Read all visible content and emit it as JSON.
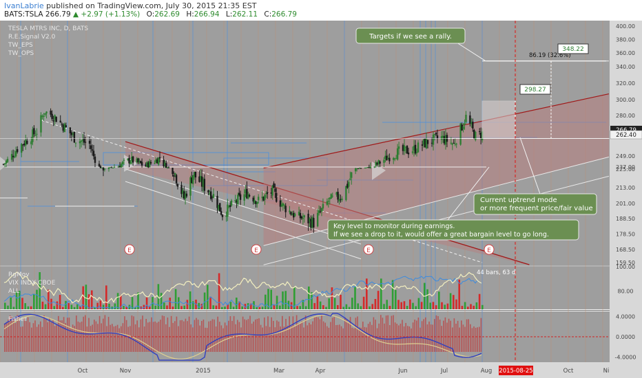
{
  "header": {
    "author": "IvanLabrie",
    "published_text": "published on TradingView.com, July 30, 2015 21:35 EST",
    "symbol": "BATS:TSLA",
    "last": "266.79",
    "change": "+2.97 (+1.13%)",
    "open_label": "O:",
    "open": "262.69",
    "high_label": "H:",
    "high": "266.94",
    "low_label": "L:",
    "low": "262.11",
    "close_label": "C:",
    "close": "266.79"
  },
  "legend": {
    "title": "TESLA MTRS INC, D, BATS",
    "items": [
      "R.E.Signal V2.0",
      "TW_EPS",
      "TW_OPS"
    ]
  },
  "colors": {
    "background": "#9e9e9e",
    "up_candle": "#2e7d32",
    "down_candle": "#1a1a1a",
    "resistance_line": "#a01818",
    "channel_fill": "#b87c7c",
    "support_line": "#e8e8e8",
    "blue_line": "#4a8fe0",
    "annotation_box": "#6b8f52",
    "volume_up": "#2f9e35",
    "volume_down": "#d42a2a",
    "fisher_bar": "#b84a4a",
    "fisher_fast": "#3040c0",
    "fisher_slow": "#e0d090",
    "date_marker": "#e01010"
  },
  "annotations": {
    "targets": "Targets if we see a rally.",
    "uptrend": [
      "Current uptrend mode",
      "or more frequent price/fair value"
    ],
    "keylevel": [
      "Key level to monitor during earnings.",
      "If we see a drop to it, would offer a great bargain level to go long."
    ],
    "measure": "86.19 (32.6%)",
    "target_high": "348.22",
    "target_mid": "298.27",
    "price_tag_current": "266.79",
    "price_tag_level": "262.40",
    "earnings_marker": "E",
    "bars_info": "44 bars, 63 d",
    "date_marker": "2015-08-25"
  },
  "indicators": {
    "rgmov_label": "RgMov",
    "vix_label": "VIX INDX CBOE",
    "vol_label": "ALL",
    "fisher_label": "Fisher",
    "rgmov_ticks": [
      {
        "v": 100,
        "label": "100.00"
      },
      {
        "v": 80,
        "label": "80.00"
      }
    ],
    "fisher_ticks": [
      {
        "v": 4,
        "label": "4.0000"
      },
      {
        "v": 0,
        "label": "0.0000"
      },
      {
        "v": -4,
        "label": "-4.0000"
      }
    ]
  },
  "chart_data": {
    "type": "candlestick",
    "title": "TESLA MTRS INC, D, BATS",
    "y_axis": {
      "min": 152,
      "max": 402,
      "ticks": [
        400,
        380,
        360,
        340,
        320,
        300,
        280,
        266.79,
        262.4,
        249,
        237,
        225,
        213,
        201,
        188.5,
        178.5,
        168.5,
        159.5
      ]
    },
    "y_tick_labels": [
      "400.00",
      "380.00",
      "360.00",
      "340.00",
      "320.00",
      "300.00",
      "280.00",
      "266.79",
      "262.40",
      "249.00",
      "237.00",
      "225.00",
      "213.00",
      "201.00",
      "188.50",
      "178.50",
      "168.50",
      "159.50"
    ],
    "x_axis": {
      "start": "2014-08-05",
      "end": "2015-11-30",
      "labels": [
        "Oct",
        "Nov",
        "2015",
        "Mar",
        "Apr",
        "Jun",
        "Jul",
        "Aug",
        "Oct",
        "Ni"
      ],
      "label_dates": [
        "2014-10-01",
        "2014-11-01",
        "2015-01-01",
        "2015-03-01",
        "2015-04-01",
        "2015-06-01",
        "2015-07-01",
        "2015-08-01",
        "2015-10-01",
        "2015-11-26"
      ]
    },
    "price_path": [
      {
        "date": "2014-08-05",
        "close": 240
      },
      {
        "date": "2014-08-15",
        "close": 255
      },
      {
        "date": "2014-08-29",
        "close": 268
      },
      {
        "date": "2014-09-04",
        "close": 285
      },
      {
        "date": "2014-09-12",
        "close": 278
      },
      {
        "date": "2014-09-26",
        "close": 262
      },
      {
        "date": "2014-10-06",
        "close": 258
      },
      {
        "date": "2014-10-16",
        "close": 227
      },
      {
        "date": "2014-10-24",
        "close": 236
      },
      {
        "date": "2014-11-05",
        "close": 245
      },
      {
        "date": "2014-11-17",
        "close": 238
      },
      {
        "date": "2014-11-28",
        "close": 247
      },
      {
        "date": "2014-12-10",
        "close": 222
      },
      {
        "date": "2014-12-17",
        "close": 205
      },
      {
        "date": "2014-12-24",
        "close": 222
      },
      {
        "date": "2015-01-09",
        "close": 207
      },
      {
        "date": "2015-01-16",
        "close": 192
      },
      {
        "date": "2015-01-26",
        "close": 202
      },
      {
        "date": "2015-02-04",
        "close": 209
      },
      {
        "date": "2015-02-13",
        "close": 203
      },
      {
        "date": "2015-02-24",
        "close": 210
      },
      {
        "date": "2015-03-04",
        "close": 199
      },
      {
        "date": "2015-03-13",
        "close": 191
      },
      {
        "date": "2015-03-27",
        "close": 186
      },
      {
        "date": "2015-04-07",
        "close": 203
      },
      {
        "date": "2015-04-17",
        "close": 207
      },
      {
        "date": "2015-04-28",
        "close": 229
      },
      {
        "date": "2015-05-08",
        "close": 235
      },
      {
        "date": "2015-05-19",
        "close": 246
      },
      {
        "date": "2015-05-29",
        "close": 252
      },
      {
        "date": "2015-06-09",
        "close": 254
      },
      {
        "date": "2015-06-19",
        "close": 260
      },
      {
        "date": "2015-06-29",
        "close": 263
      },
      {
        "date": "2015-07-08",
        "close": 258
      },
      {
        "date": "2015-07-17",
        "close": 279
      },
      {
        "date": "2015-07-24",
        "close": 264
      },
      {
        "date": "2015-07-30",
        "close": 266.79
      }
    ],
    "resistance_line": {
      "from": {
        "date": "2014-11-01",
        "price": 260
      },
      "to": {
        "date": "2015-09-02",
        "price": 158
      }
    },
    "upper_channel_line": {
      "from": {
        "date": "2015-02-17",
        "price": 231
      },
      "to": {
        "date": "2015-11-30",
        "price": 307
      }
    },
    "lower_channel_line": {
      "from": {
        "date": "2015-02-17",
        "price": 171
      },
      "to": {
        "date": "2015-11-30",
        "price": 248
      }
    },
    "support_lines": [
      {
        "from": {
          "date": "2014-11-01",
          "price": 226
        },
        "to": {
          "date": "2015-05-01",
          "price": 172
        }
      },
      {
        "from": {
          "date": "2014-11-01",
          "price": 217
        },
        "to": {
          "date": "2015-05-01",
          "price": 162
        }
      }
    ],
    "horizontal_levels": [
      {
        "price": 262.4,
        "from": "2015-07-01",
        "to": "2015-11-30"
      },
      {
        "price": 348.22,
        "from": "2015-08-01",
        "to": "2015-11-30"
      },
      {
        "price": 237,
        "from": "2014-08-05",
        "to": "2015-08-01"
      }
    ],
    "targets": [
      348.22,
      298.27
    ],
    "measured_move": "86.19 (32.6%)",
    "earnings_dates": [
      "2014-11-05",
      "2015-02-11",
      "2015-05-07",
      "2015-08-05"
    ],
    "date_marker": "2015-08-25",
    "rgmov": {
      "min": 65,
      "max": 100,
      "ticks": [
        100,
        80
      ]
    },
    "fisher": {
      "min": -5,
      "max": 5,
      "ticks": [
        4,
        0,
        -4
      ]
    }
  }
}
